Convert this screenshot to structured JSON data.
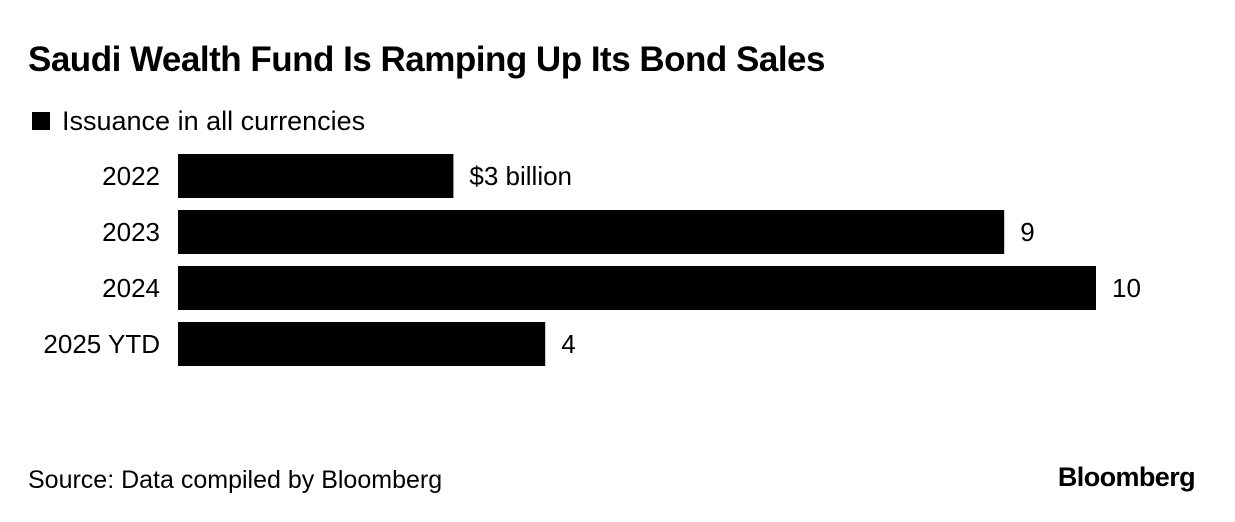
{
  "title": "Saudi Wealth Fund Is Ramping Up Its Bond Sales",
  "legend": {
    "label": "Issuance in all currencies",
    "color": "#000000"
  },
  "chart_data": {
    "type": "bar",
    "orientation": "horizontal",
    "title": "Saudi Wealth Fund Is Ramping Up Its Bond Sales",
    "categories": [
      "2022",
      "2023",
      "2024",
      "2025 YTD"
    ],
    "series": [
      {
        "name": "Issuance in all currencies",
        "values": [
          3,
          9,
          10,
          4
        ],
        "data_labels": [
          "$3 billion",
          "9",
          "10",
          "4"
        ],
        "color": "#000000"
      }
    ],
    "unit": "billion USD",
    "xlim": [
      0,
      10
    ],
    "grid": false,
    "legend_position": "top-left"
  },
  "source": "Source: Data compiled by Bloomberg",
  "brand": "Bloomberg"
}
